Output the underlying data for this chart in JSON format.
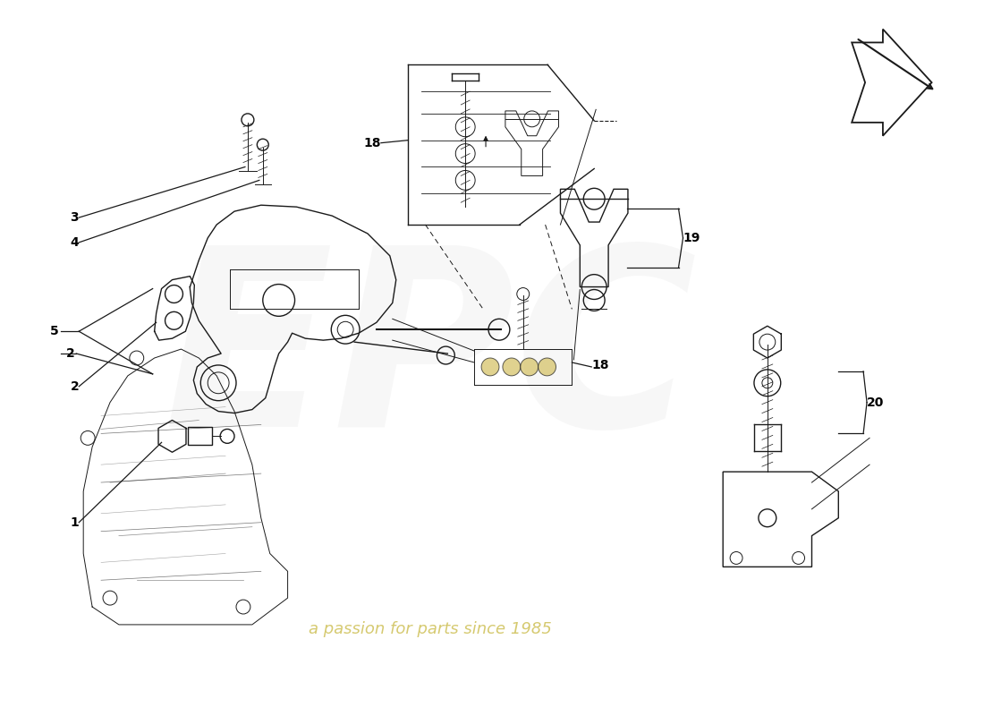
{
  "bg_color": "#ffffff",
  "lc": "#1a1a1a",
  "lw": 1.0,
  "watermark_epc": "#e8e8e8",
  "watermark_text": "a passion for parts since 1985",
  "watermark_text_color": "#c8b840",
  "label_fontsize": 10,
  "label_color": "#000000"
}
